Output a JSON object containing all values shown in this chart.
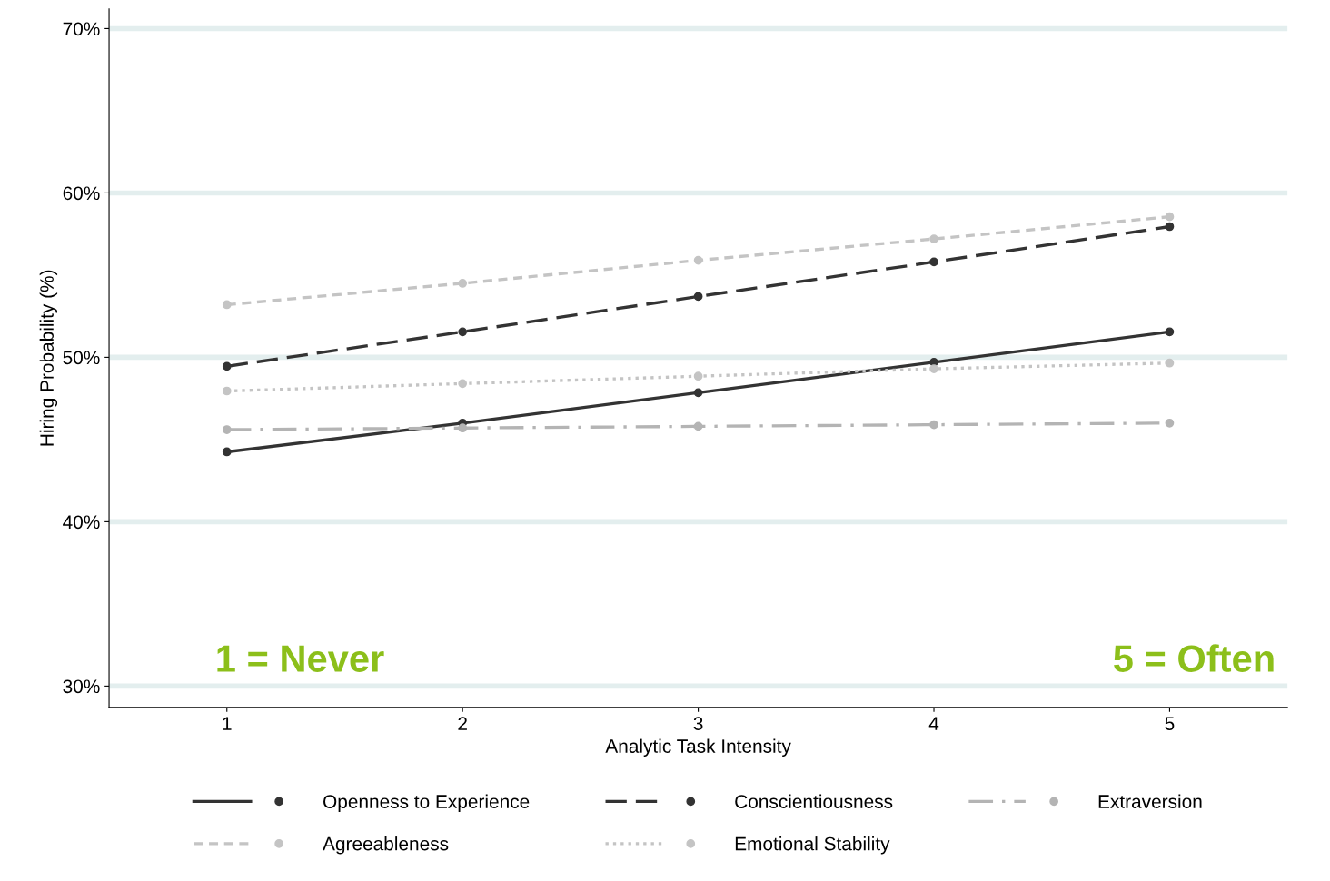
{
  "chart_data": {
    "type": "line",
    "xlabel": "Analytic Task Intensity",
    "ylabel": "Hiring Probability (%)",
    "x": [
      1,
      2,
      3,
      4,
      5
    ],
    "series": [
      {
        "name": "Openness to Experience",
        "color": "#333333",
        "line_style": "solid",
        "values": [
          44.25,
          46.0,
          47.85,
          49.7,
          51.55
        ]
      },
      {
        "name": "Conscientiousness",
        "color": "#333333",
        "line_style": "longdash",
        "values": [
          49.45,
          51.55,
          53.7,
          55.8,
          57.95
        ]
      },
      {
        "name": "Extraversion",
        "color": "#b4b4b4",
        "line_style": "dashdot",
        "values": [
          45.6,
          45.7,
          45.8,
          45.9,
          46.0
        ]
      },
      {
        "name": "Agreeableness",
        "color": "#c4c4c4",
        "line_style": "dashed",
        "values": [
          53.2,
          54.5,
          55.9,
          57.2,
          58.55
        ]
      },
      {
        "name": "Emotional Stability",
        "color": "#c4c4c4",
        "line_style": "dotted",
        "values": [
          47.95,
          48.4,
          48.85,
          49.3,
          49.65
        ]
      }
    ],
    "marker": "circle",
    "xlim": [
      0.5,
      5.5
    ],
    "xticks": [
      1,
      2,
      3,
      4,
      5
    ],
    "ylim": [
      28.7,
      71.2
    ],
    "yticks": [
      {
        "value": 30,
        "label": "30%"
      },
      {
        "value": 40,
        "label": "40%"
      },
      {
        "value": 50,
        "label": "50%"
      },
      {
        "value": 60,
        "label": "60%"
      },
      {
        "value": 70,
        "label": "70%"
      }
    ],
    "grid": "y",
    "legend": "bottom",
    "annotations": [
      "1 = Never",
      "5 = Often"
    ]
  }
}
